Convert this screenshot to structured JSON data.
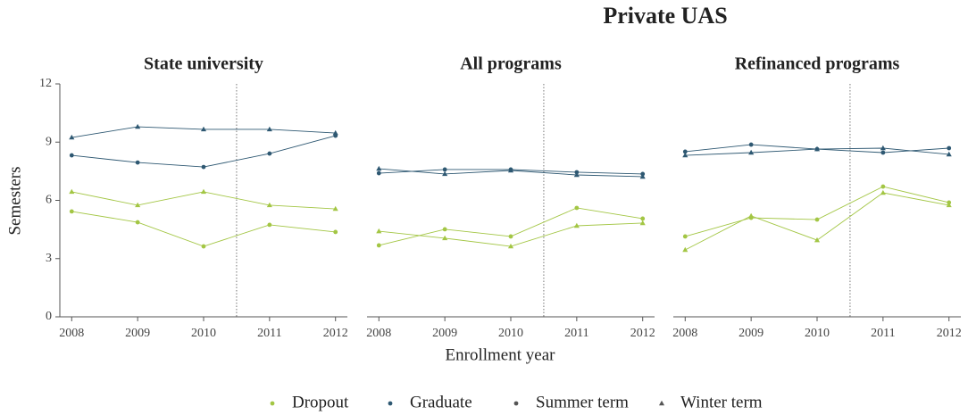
{
  "title": "Private UAS",
  "y_label": "Semesters",
  "x_label": "Enrollment year",
  "legend": {
    "colors": [
      {
        "label": "Dropout",
        "color": "#a3c644"
      },
      {
        "label": "Graduate",
        "color": "#2e5872"
      }
    ],
    "markers": [
      {
        "label": "Summer term",
        "marker": "circle",
        "color": "#555555"
      },
      {
        "label": "Winter term",
        "marker": "triangle",
        "color": "#555555"
      }
    ]
  },
  "chart_data": [
    {
      "type": "line",
      "title": "State university",
      "x": [
        2008,
        2009,
        2010,
        2011,
        2012
      ],
      "xlim": [
        2007.82,
        2012.18
      ],
      "xticks": [
        2008,
        2009,
        2010,
        2011,
        2012
      ],
      "ylim": [
        0,
        12
      ],
      "yticks": [
        0,
        3,
        6,
        9,
        12
      ],
      "vline": 2010.5,
      "grid": false,
      "series": [
        {
          "color": "#a3c644",
          "marker": "circle",
          "values": [
            5.43,
            4.87,
            3.63,
            4.74,
            4.37
          ]
        },
        {
          "color": "#a3c644",
          "marker": "triangle",
          "values": [
            6.44,
            5.75,
            6.44,
            5.75,
            5.56
          ]
        },
        {
          "color": "#2e5872",
          "marker": "circle",
          "values": [
            8.32,
            7.95,
            7.72,
            8.41,
            9.33
          ]
        },
        {
          "color": "#2e5872",
          "marker": "triangle",
          "values": [
            9.24,
            9.79,
            9.66,
            9.66,
            9.47
          ]
        }
      ]
    },
    {
      "type": "line",
      "title": "All programs",
      "x": [
        2008,
        2009,
        2010,
        2011,
        2012
      ],
      "xlim": [
        2007.82,
        2012.18
      ],
      "xticks": [
        2008,
        2009,
        2010,
        2011,
        2012
      ],
      "ylim": [
        0,
        12
      ],
      "vline": 2010.5,
      "grid": false,
      "series": [
        {
          "color": "#a3c644",
          "marker": "circle",
          "values": [
            3.68,
            4.51,
            4.14,
            5.61,
            5.06
          ]
        },
        {
          "color": "#a3c644",
          "marker": "triangle",
          "values": [
            4.41,
            4.05,
            3.63,
            4.69,
            4.83
          ]
        },
        {
          "color": "#2e5872",
          "marker": "circle",
          "values": [
            7.4,
            7.59,
            7.59,
            7.45,
            7.36
          ]
        },
        {
          "color": "#2e5872",
          "marker": "triangle",
          "values": [
            7.63,
            7.36,
            7.54,
            7.31,
            7.22
          ]
        }
      ]
    },
    {
      "type": "line",
      "title": "Refinanced programs",
      "x": [
        2008,
        2009,
        2010,
        2011,
        2012
      ],
      "xlim": [
        2007.82,
        2012.18
      ],
      "xticks": [
        2008,
        2009,
        2010,
        2011,
        2012
      ],
      "ylim": [
        0,
        12
      ],
      "vline": 2010.5,
      "grid": false,
      "series": [
        {
          "color": "#a3c644",
          "marker": "circle",
          "values": [
            4.14,
            5.1,
            5.01,
            6.71,
            5.89
          ]
        },
        {
          "color": "#a3c644",
          "marker": "triangle",
          "values": [
            3.45,
            5.2,
            3.95,
            6.39,
            5.75
          ]
        },
        {
          "color": "#2e5872",
          "marker": "circle",
          "values": [
            8.51,
            8.87,
            8.64,
            8.46,
            8.69
          ]
        },
        {
          "color": "#2e5872",
          "marker": "triangle",
          "values": [
            8.32,
            8.46,
            8.64,
            8.69,
            8.37
          ]
        }
      ]
    }
  ]
}
